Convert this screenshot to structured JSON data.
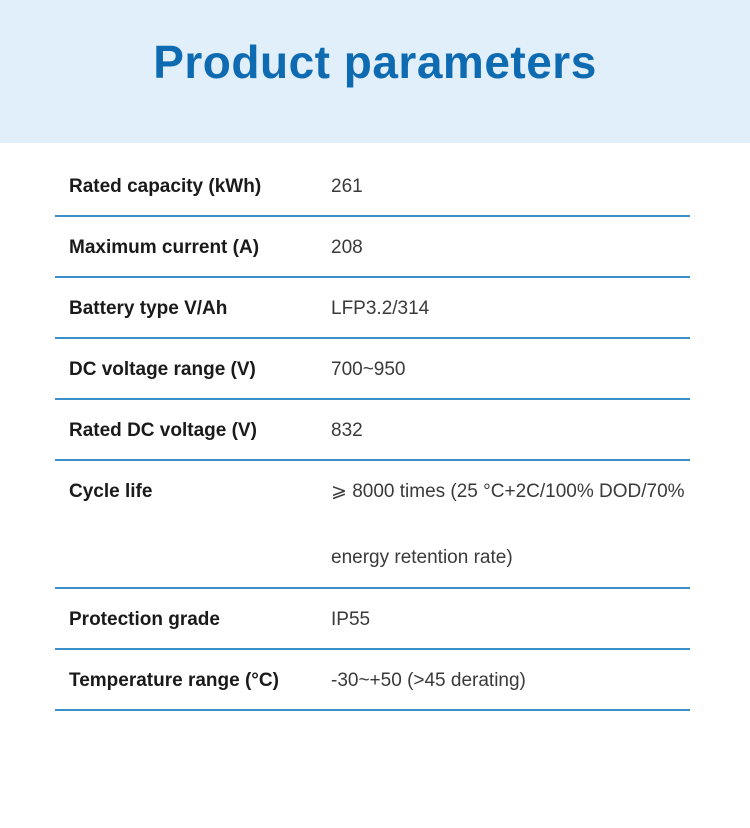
{
  "title": "Product parameters",
  "colors": {
    "header_bg": "#e1effb",
    "title": "#0e6bb2",
    "divider": "#3d8fc9"
  },
  "rows": [
    {
      "label": "Rated capacity (kWh)",
      "value": "261"
    },
    {
      "label": "Maximum current (A)",
      "value": "208"
    },
    {
      "label": "Battery type V/Ah",
      "value": "LFP3.2/314"
    },
    {
      "label": "DC voltage range (V)",
      "value": "700~950"
    },
    {
      "label": "Rated DC voltage (V)",
      "value": "832"
    },
    {
      "label": "Cycle life",
      "value": "⩾ 8000 times (25 °C+2C/100% DOD/70% energy retention rate)"
    },
    {
      "label": "Protection grade",
      "value": "IP55"
    },
    {
      "label": "Temperature range (°C)",
      "value": "-30~+50 (>45 derating)"
    }
  ]
}
